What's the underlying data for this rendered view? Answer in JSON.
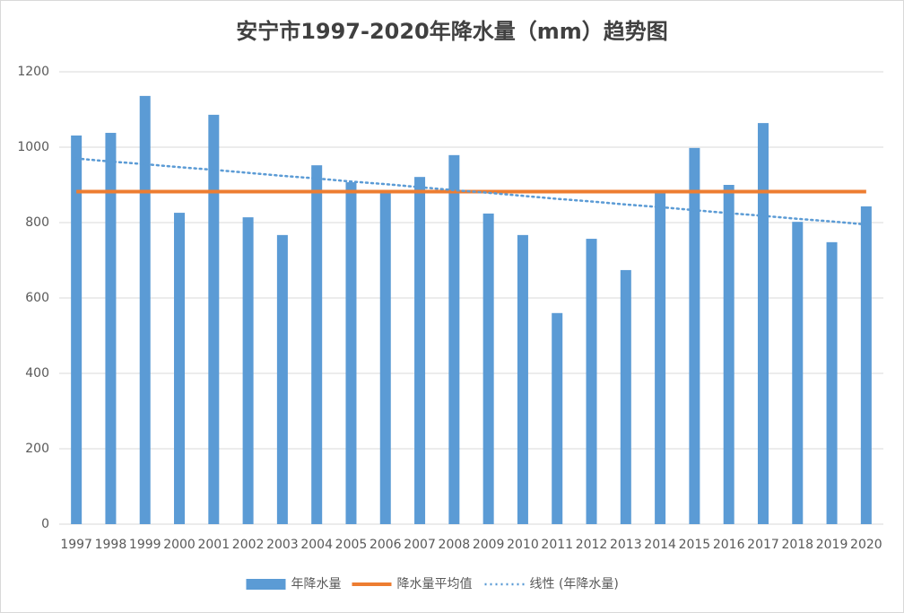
{
  "chart_data": {
    "type": "bar",
    "title": "安宁市1997-2020年降水量（mm）趋势图",
    "categories": [
      "1997",
      "1998",
      "1999",
      "2000",
      "2001",
      "2002",
      "2003",
      "2004",
      "2005",
      "2006",
      "2007",
      "2008",
      "2009",
      "2010",
      "2011",
      "2012",
      "2013",
      "2014",
      "2015",
      "2016",
      "2017",
      "2018",
      "2019",
      "2020"
    ],
    "series": [
      {
        "name": "年降水量",
        "type": "bar",
        "color": "#5b9bd5",
        "values": [
          1031,
          1038,
          1136,
          826,
          1086,
          814,
          767,
          952,
          907,
          881,
          921,
          979,
          824,
          767,
          560,
          757,
          674,
          883,
          998,
          900,
          1064,
          802,
          748,
          843
        ]
      },
      {
        "name": "降水量平均值",
        "type": "line",
        "color": "#ed7d31",
        "values": [
          882,
          882,
          882,
          882,
          882,
          882,
          882,
          882,
          882,
          882,
          882,
          882,
          882,
          882,
          882,
          882,
          882,
          882,
          882,
          882,
          882,
          882,
          882,
          882
        ]
      },
      {
        "name": "线性 (年降水量)",
        "type": "line",
        "dash": "dotted",
        "color": "#5b9bd5",
        "values": [
          970,
          962,
          955,
          947,
          940,
          932,
          924,
          917,
          909,
          902,
          894,
          886,
          879,
          871,
          863,
          856,
          848,
          841,
          833,
          825,
          818,
          810,
          803,
          795
        ]
      }
    ],
    "ylim": [
      0,
      1200
    ],
    "yticks": [
      0,
      200,
      400,
      600,
      800,
      1000,
      1200
    ],
    "grid": true,
    "legend": "bottom"
  }
}
